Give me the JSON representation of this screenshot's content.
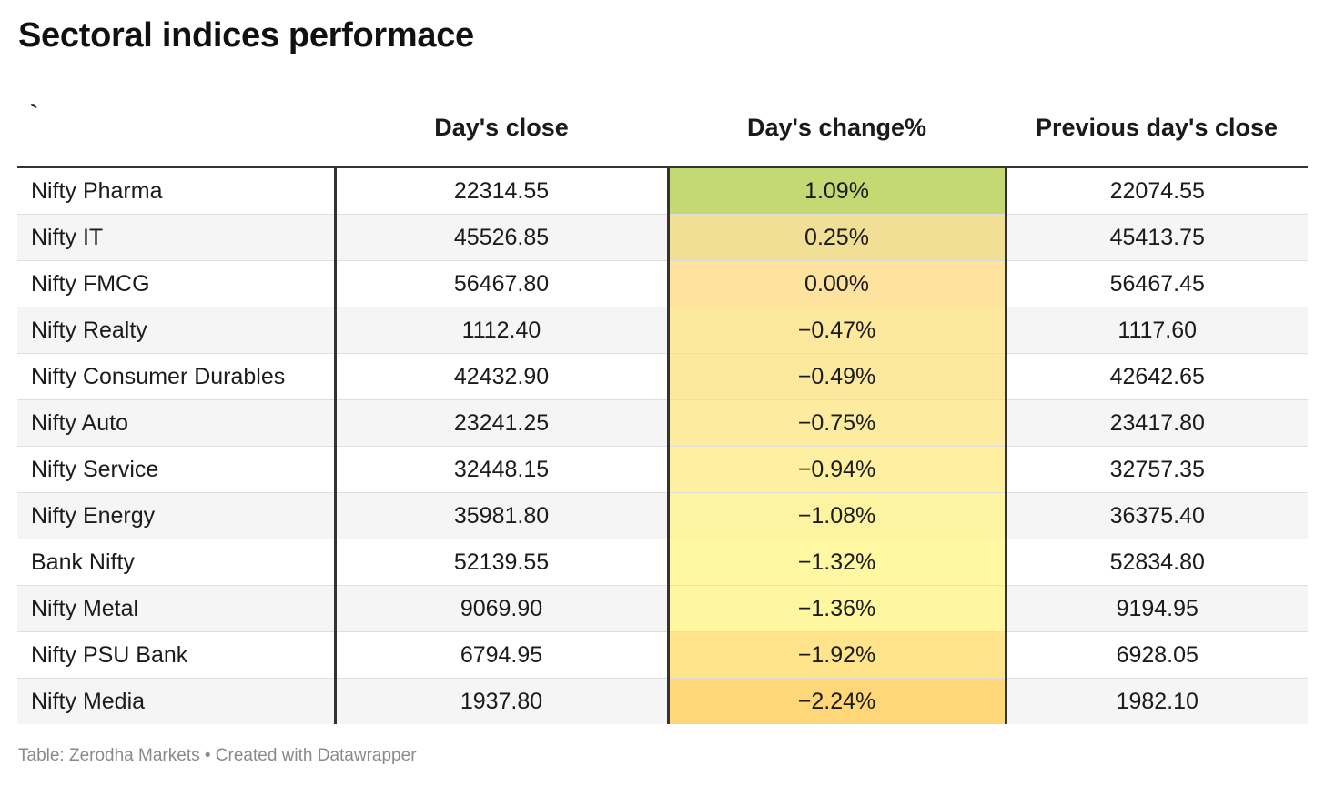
{
  "title": "Sectoral indices performace",
  "footer": "Table: Zerodha Markets • Created with Datawrapper",
  "color_scale": {
    "positive_high": "#c5da73",
    "neutral": "#f8e296",
    "negative_mid": "#fff6a2",
    "negative_high": "#ffd779"
  },
  "chart_data": {
    "type": "table",
    "title": "Sectoral indices performace",
    "columns": [
      "`",
      "Day's close",
      "Day's change%",
      "Previous day's close"
    ],
    "rows": [
      {
        "name": "Nifty Pharma",
        "close": "22314.55",
        "change": "1.09%",
        "change_value": 1.09,
        "prev": "22074.55",
        "color": "#c4d974"
      },
      {
        "name": "Nifty IT",
        "close": "45526.85",
        "change": "0.25%",
        "change_value": 0.25,
        "prev": "45413.75",
        "color": "#f0df95"
      },
      {
        "name": "Nifty FMCG",
        "close": "56467.80",
        "change": "0.00%",
        "change_value": 0.0,
        "prev": "56467.45",
        "color": "#fde39e"
      },
      {
        "name": "Nifty Realty",
        "close": "1112.40",
        "change": "−0.47%",
        "change_value": -0.47,
        "prev": "1117.60",
        "color": "#fde99e"
      },
      {
        "name": "Nifty Consumer Durables",
        "close": "42432.90",
        "change": "−0.49%",
        "change_value": -0.49,
        "prev": "42642.65",
        "color": "#fde99e"
      },
      {
        "name": "Nifty Auto",
        "close": "23241.25",
        "change": "−0.75%",
        "change_value": -0.75,
        "prev": "23417.80",
        "color": "#fdec9f"
      },
      {
        "name": "Nifty Service",
        "close": "32448.15",
        "change": "−0.94%",
        "change_value": -0.94,
        "prev": "32757.35",
        "color": "#fef0a0"
      },
      {
        "name": "Nifty Energy",
        "close": "35981.80",
        "change": "−1.08%",
        "change_value": -1.08,
        "prev": "36375.40",
        "color": "#fef3a1"
      },
      {
        "name": "Bank Nifty",
        "close": "52139.55",
        "change": "−1.32%",
        "change_value": -1.32,
        "prev": "52834.80",
        "color": "#fff7a2"
      },
      {
        "name": "Nifty Metal",
        "close": "9069.90",
        "change": "−1.36%",
        "change_value": -1.36,
        "prev": "9194.95",
        "color": "#fff6a2"
      },
      {
        "name": "Nifty PSU Bank",
        "close": "6794.95",
        "change": "−1.92%",
        "change_value": -1.92,
        "prev": "6928.05",
        "color": "#ffe48c"
      },
      {
        "name": "Nifty Media",
        "close": "1937.80",
        "change": "−2.24%",
        "change_value": -2.24,
        "prev": "1982.10",
        "color": "#ffd779"
      }
    ]
  }
}
